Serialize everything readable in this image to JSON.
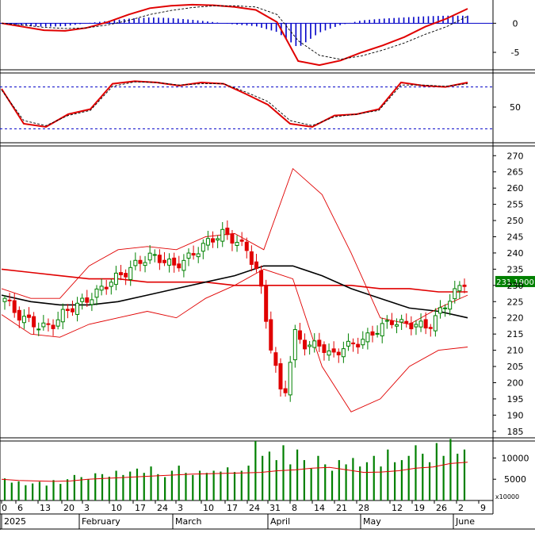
{
  "chart_data": [
    {
      "type": "line",
      "panel": "macd",
      "y_ticks": [
        "0",
        "-5"
      ],
      "ylim": [
        -8,
        4
      ],
      "series": [
        {
          "color": "#e00000",
          "values": [
            0,
            -0.6,
            -1.2,
            -1.3,
            -0.8,
            0.2,
            1.5,
            2.6,
            3.0,
            3.2,
            3.1,
            2.8,
            2.3,
            0.2,
            -6.5,
            -7.2,
            -6.4,
            -5.0,
            -3.8,
            -2.4,
            -0.6,
            0.8,
            2.5
          ]
        },
        {
          "color": "#000000",
          "values": [
            0,
            -0.3,
            -0.7,
            -0.9,
            -0.8,
            -0.3,
            0.5,
            1.5,
            2.2,
            2.7,
            3.0,
            3.0,
            2.8,
            1.5,
            -3.0,
            -5.5,
            -6.2,
            -5.6,
            -4.6,
            -3.4,
            -1.9,
            -0.6,
            1.2
          ]
        }
      ],
      "histogram": [
        0,
        -0.4,
        -0.6,
        -0.5,
        0,
        0.4,
        0.8,
        1.0,
        0.9,
        0.6,
        0.2,
        -0.2,
        -0.5,
        -1.5,
        -4.2,
        -1.6,
        -0.3,
        0.5,
        0.8,
        1.0,
        1.2,
        1.3,
        1.3
      ],
      "histogram_color": "#0000c8"
    },
    {
      "type": "line",
      "panel": "stochastic",
      "y_ticks": [
        "50"
      ],
      "ylim": [
        0,
        100
      ],
      "reference_lines": [
        80,
        20
      ],
      "series": [
        {
          "color": "#e00000",
          "values": [
            80,
            25,
            20,
            40,
            48,
            88,
            92,
            90,
            85,
            90,
            88,
            72,
            55,
            25,
            20,
            38,
            40,
            48,
            90,
            85,
            83,
            90
          ]
        },
        {
          "color": "#000000",
          "values": [
            78,
            30,
            22,
            38,
            46,
            84,
            91,
            90,
            86,
            88,
            88,
            75,
            60,
            30,
            22,
            36,
            40,
            46,
            86,
            86,
            84,
            88
          ]
        }
      ]
    },
    {
      "type": "bar",
      "subtype": "candlestick",
      "panel": "price",
      "y_ticks": [
        "270",
        "265",
        "260",
        "255",
        "250",
        "245",
        "240",
        "235",
        "230",
        "225",
        "220",
        "215",
        "210",
        "205",
        "200",
        "195",
        "190",
        "185"
      ],
      "ylim": [
        183,
        273
      ],
      "price_tag": "231.1900",
      "price_tag_value": 231.19,
      "up_color": "#008000",
      "down_color": "#e00000",
      "closes": [
        226,
        221,
        219,
        217,
        218,
        222,
        224,
        226,
        229,
        232,
        234,
        237,
        239,
        238,
        236,
        238,
        241,
        244,
        246,
        244,
        241,
        233,
        211,
        194,
        215,
        211,
        212,
        208,
        211,
        212,
        214,
        217,
        219,
        218,
        218,
        217,
        222,
        227,
        231
      ],
      "series": [
        {
          "name": "",
          "color": "#e00000",
          "width": 1.6,
          "values": [
            235,
            234,
            233,
            232,
            232,
            231,
            231,
            231,
            230,
            230,
            230,
            230,
            230,
            229,
            229,
            228,
            228
          ]
        },
        {
          "name": "",
          "color": "#000000",
          "width": 1.6,
          "values": [
            227,
            225,
            224,
            224,
            225,
            227,
            229,
            231,
            233,
            236,
            236,
            233,
            229,
            226,
            223,
            222,
            220
          ]
        },
        {
          "name": "",
          "color": "#e00000",
          "width": 0.9,
          "values": [
            229,
            226,
            226,
            236,
            241,
            242,
            241,
            245,
            246,
            241,
            266,
            258,
            240,
            220,
            218,
            223,
            227
          ]
        },
        {
          "name": "",
          "color": "#e00000",
          "width": 0.9,
          "values": [
            221,
            215,
            214,
            218,
            220,
            222,
            220,
            226,
            230,
            235,
            232,
            205,
            191,
            195,
            205,
            210,
            211
          ]
        }
      ]
    },
    {
      "type": "bar",
      "panel": "volume",
      "y_ticks": [
        "10000",
        "5000"
      ],
      "unit_label": "x10000",
      "ylim": [
        0,
        14000
      ],
      "bar_color": "#008000",
      "values": [
        5200,
        4200,
        4500,
        3600,
        4000,
        4400,
        3500,
        4800,
        3900,
        5000,
        6000,
        5500,
        5000,
        6400,
        6200,
        5600,
        7000,
        6000,
        6800,
        7500,
        6500,
        8000,
        6200,
        5500,
        7000,
        8200,
        6500,
        6000,
        7000,
        6500,
        7000,
        6800,
        7800,
        6700,
        7000,
        8200,
        14000,
        10500,
        11500,
        9500,
        13000,
        8500,
        12000,
        9500,
        7500,
        10500,
        8500,
        7000,
        9500,
        8500,
        10000,
        8000,
        9000,
        10500,
        8000,
        12000,
        9000,
        9500,
        10500,
        13000,
        11000,
        9000,
        13500,
        10500,
        14500,
        11000,
        12000
      ],
      "ma_color": "#e00000",
      "ma_values": [
        5000,
        4700,
        4600,
        4500,
        4600,
        5000,
        5200,
        5400,
        5600,
        5800,
        6000,
        6200,
        6300,
        6400,
        6500,
        6600,
        7000,
        7200,
        7600,
        7800,
        7200,
        6600,
        6700,
        7000,
        7600,
        7900,
        8700,
        9000
      ]
    }
  ],
  "x_axis": {
    "day_ticks": [
      "0",
      "6",
      "13",
      "20",
      "3",
      "10",
      "17",
      "24",
      "3",
      "10",
      "17",
      "24",
      "31",
      "8",
      "14",
      "21",
      "28",
      "12",
      "19",
      "26",
      "2",
      "9"
    ],
    "month_labels": [
      "2025",
      "February",
      "March",
      "April",
      "May",
      "June"
    ]
  }
}
